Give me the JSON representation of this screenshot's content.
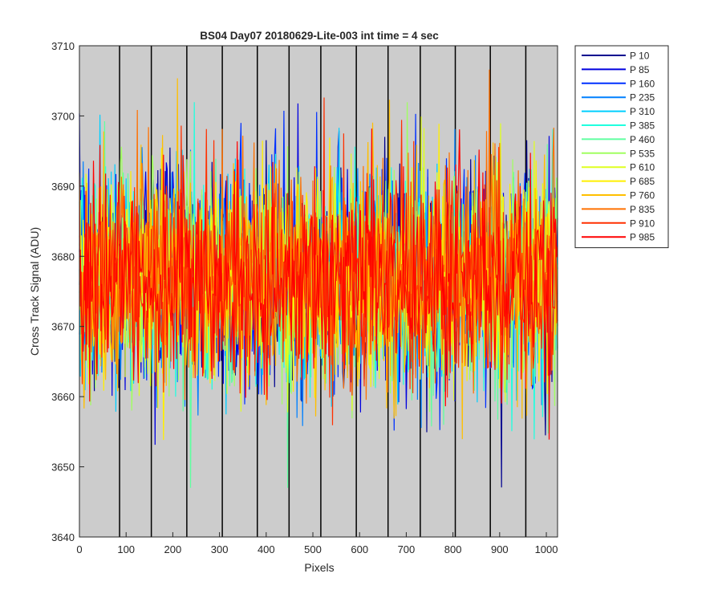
{
  "chart_data": {
    "type": "line",
    "title": "BS04 Day07 20180629-Lite-003 int time = 4 sec",
    "xlabel": "Pixels",
    "ylabel": "Cross Track Signal (ADU)",
    "xlim": [
      0,
      1024
    ],
    "ylim": [
      3640,
      3710
    ],
    "xticks": [
      0,
      100,
      200,
      300,
      400,
      500,
      600,
      700,
      800,
      900,
      1000
    ],
    "yticks": [
      3640,
      3650,
      3660,
      3670,
      3680,
      3690,
      3700,
      3710
    ],
    "background_color": "#cccccc",
    "grid": false,
    "legend_position": "outside-top-right",
    "vertical_lines": [
      86,
      154,
      230,
      306,
      381,
      449,
      517,
      593,
      661,
      730,
      805,
      880,
      956
    ],
    "noise": {
      "mean": 3677,
      "std": 7.5,
      "note_range": [
        3647,
        3709
      ]
    },
    "series": [
      {
        "name": "P 10",
        "color": "#00008f"
      },
      {
        "name": "P 85",
        "color": "#0000df"
      },
      {
        "name": "P 160",
        "color": "#0030ff"
      },
      {
        "name": "P 235",
        "color": "#0080ff"
      },
      {
        "name": "P 310",
        "color": "#00cfff"
      },
      {
        "name": "P 385",
        "color": "#20ffdf"
      },
      {
        "name": "P 460",
        "color": "#60ffa0"
      },
      {
        "name": "P 535",
        "color": "#a0ff60"
      },
      {
        "name": "P 610",
        "color": "#dfff20"
      },
      {
        "name": "P 685",
        "color": "#ffef00"
      },
      {
        "name": "P 760",
        "color": "#ffbf00"
      },
      {
        "name": "P 835",
        "color": "#ff7000"
      },
      {
        "name": "P 910",
        "color": "#ff3000"
      },
      {
        "name": "P 985",
        "color": "#ff0000"
      }
    ]
  }
}
